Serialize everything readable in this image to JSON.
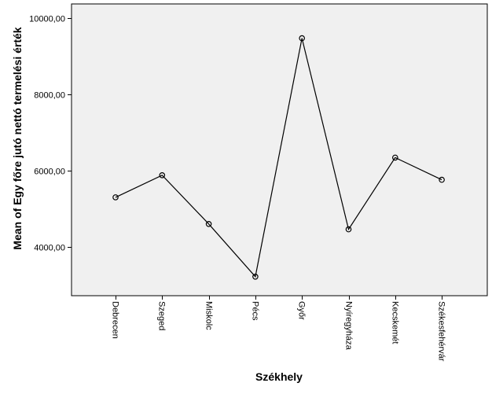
{
  "chart_data": {
    "type": "line",
    "title": "",
    "xlabel": "Székhely",
    "ylabel": "Mean of Egy főre jutó nettó termelési érték",
    "categories": [
      "Debrecen",
      "Szeged",
      "Miskolc",
      "Pécs",
      "Győr",
      "Nyíregyháza",
      "Kecskemét",
      "Székesfehérvár"
    ],
    "series": [
      {
        "values": [
          5300,
          5880,
          4600,
          3220,
          9470,
          4460,
          6340,
          5760
        ]
      }
    ],
    "yticks": [
      4000,
      6000,
      8000,
      10000
    ],
    "ytick_labels": [
      "4000,00",
      "6000,00",
      "8000,00",
      "10000,00"
    ],
    "ylim": [
      2720,
      10370
    ],
    "grid": false,
    "legend": "none",
    "colors": {
      "plot_background": "#f0f0f0",
      "line": "#000000",
      "marker_edge": "#000000"
    }
  }
}
